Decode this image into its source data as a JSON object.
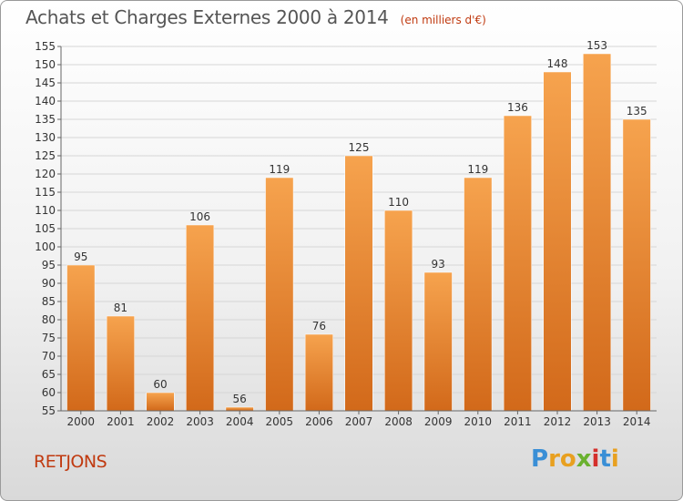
{
  "header": {
    "title": "Achats et Charges Externes 2000 à 2014",
    "subtitle": "(en milliers d'€)"
  },
  "footer": {
    "city": "RETJONS",
    "brand": "Proxiti",
    "brand_colors": [
      "#3a8fd6",
      "#e8a020",
      "#e8a020",
      "#6ab12f",
      "#d4302c",
      "#3a8fd6",
      "#e8a020"
    ]
  },
  "chart_data": {
    "type": "bar",
    "categories": [
      "2000",
      "2001",
      "2002",
      "2003",
      "2004",
      "2005",
      "2006",
      "2007",
      "2008",
      "2009",
      "2010",
      "2011",
      "2012",
      "2013",
      "2014"
    ],
    "values": [
      95,
      81,
      60,
      106,
      56,
      119,
      76,
      125,
      110,
      93,
      119,
      136,
      148,
      153,
      135
    ],
    "ylim": [
      55,
      155
    ],
    "yticks": [
      55,
      60,
      65,
      70,
      75,
      80,
      85,
      90,
      95,
      100,
      105,
      110,
      115,
      120,
      125,
      130,
      135,
      140,
      145,
      150,
      155
    ],
    "grid": true,
    "bar_color_light": "#f6a34e",
    "bar_color_dark": "#d2691a"
  }
}
